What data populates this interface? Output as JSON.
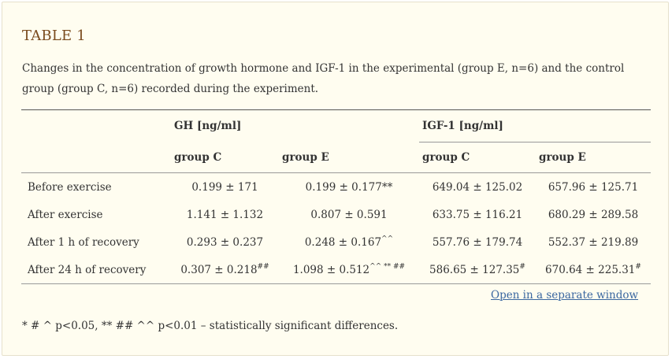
{
  "table_title": "TABLE 1",
  "caption": "Changes in the concentration of growth hormone and IGF-1 in the experimental (group E, n=6) and the control group (group C, n=6) recorded during the experiment.",
  "columns": {
    "gh": "GH [ng/ml]",
    "igf": "IGF-1 [ng/ml]",
    "gh_c": "group C",
    "gh_e": "group E",
    "igf_c": "group C",
    "igf_e": "group E"
  },
  "rows": [
    {
      "label": "Before exercise",
      "gh_c": {
        "v": "0.199 ± 171",
        "s": ""
      },
      "gh_e": {
        "v": "0.199 ± 0.177**",
        "s": ""
      },
      "igf_c": {
        "v": "649.04 ± 125.02",
        "s": ""
      },
      "igf_e": {
        "v": "657.96 ± 125.71",
        "s": ""
      }
    },
    {
      "label": "After exercise",
      "gh_c": {
        "v": "1.141 ± 1.132",
        "s": ""
      },
      "gh_e": {
        "v": "0.807 ± 0.591",
        "s": ""
      },
      "igf_c": {
        "v": "633.75 ± 116.21",
        "s": ""
      },
      "igf_e": {
        "v": "680.29 ± 289.58",
        "s": ""
      }
    },
    {
      "label": "After 1 h of recovery",
      "gh_c": {
        "v": "0.293 ± 0.237",
        "s": ""
      },
      "gh_e": {
        "v": "0.248 ± 0.167",
        "s": "^^"
      },
      "igf_c": {
        "v": "557.76 ± 179.74",
        "s": ""
      },
      "igf_e": {
        "v": "552.37 ± 219.89",
        "s": ""
      }
    },
    {
      "label": "After 24 h of recovery",
      "gh_c": {
        "v": "0.307 ± 0.218",
        "s": "##"
      },
      "gh_e": {
        "v": "1.098 ± 0.512",
        "s": "^^ ** ##"
      },
      "igf_c": {
        "v": "586.65 ± 127.35",
        "s": "#"
      },
      "igf_e": {
        "v": "670.64 ± 225.31",
        "s": "#"
      }
    }
  ],
  "link_text": "Open in a separate window",
  "footnote": "* # ^ p<0.05, ** ## ^^ p<0.01 – statistically significant differences."
}
